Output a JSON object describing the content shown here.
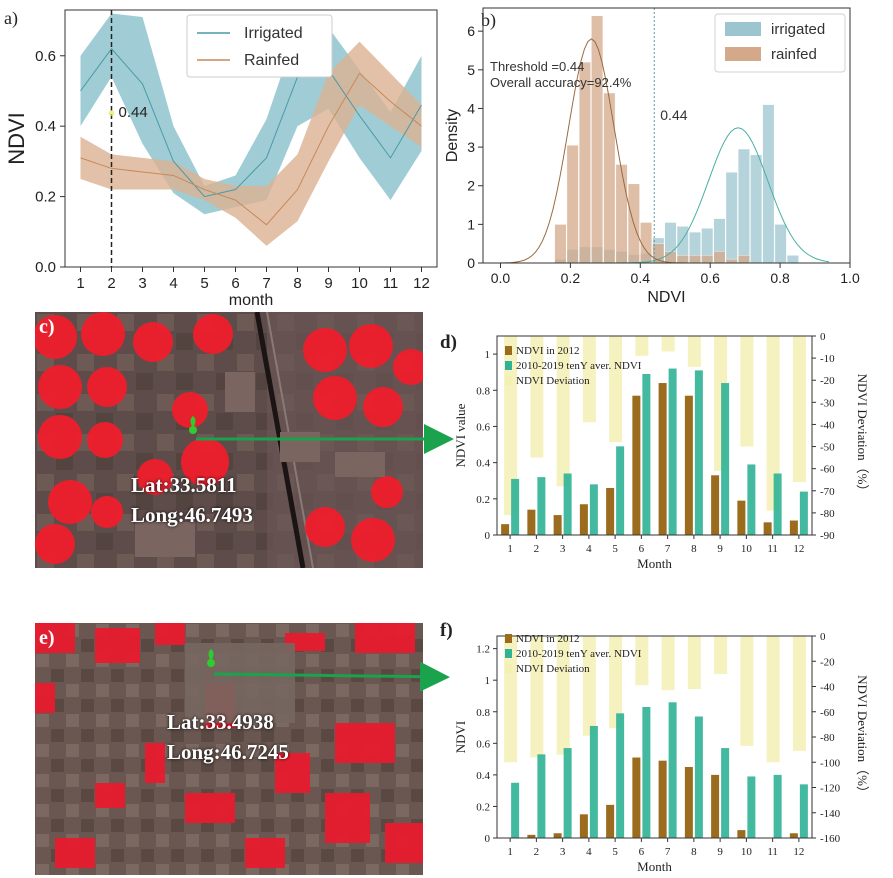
{
  "chart_data": [
    {
      "panel": "a)",
      "type": "area",
      "xlabel": "month",
      "ylabel": "NDVI",
      "x": [
        1,
        2,
        3,
        4,
        5,
        6,
        7,
        8,
        9,
        10,
        11,
        12
      ],
      "xlim": [
        0.5,
        12.5
      ],
      "ylim": [
        0,
        0.73
      ],
      "yticks": [
        0.0,
        0.2,
        0.4,
        0.6
      ],
      "ytick_labels": [
        "0.0",
        "0.2",
        "0.4",
        "0.6"
      ],
      "legend_position": "top-center",
      "threshold_label": "0.44",
      "threshold_x": 2,
      "series": [
        {
          "name": "Irrigated",
          "color": "#4a9aa5",
          "fill": "#8fc4ce",
          "mean": [
            0.5,
            0.62,
            0.52,
            0.3,
            0.2,
            0.22,
            0.31,
            0.54,
            0.56,
            0.43,
            0.31,
            0.46
          ],
          "upper": [
            0.6,
            0.72,
            0.71,
            0.4,
            0.23,
            0.26,
            0.42,
            0.68,
            0.68,
            0.56,
            0.44,
            0.6
          ],
          "lower": [
            0.4,
            0.54,
            0.35,
            0.21,
            0.15,
            0.17,
            0.19,
            0.4,
            0.45,
            0.31,
            0.19,
            0.33
          ]
        },
        {
          "name": "Rainfed",
          "color": "#c8895a",
          "fill": "#dbb292",
          "mean": [
            0.31,
            0.28,
            0.27,
            0.26,
            0.22,
            0.19,
            0.12,
            0.22,
            0.4,
            0.55,
            0.47,
            0.4
          ],
          "upper": [
            0.37,
            0.32,
            0.31,
            0.3,
            0.25,
            0.23,
            0.23,
            0.32,
            0.55,
            0.64,
            0.55,
            0.46
          ],
          "lower": [
            0.25,
            0.22,
            0.22,
            0.22,
            0.19,
            0.14,
            0.06,
            0.13,
            0.3,
            0.46,
            0.4,
            0.34
          ]
        }
      ]
    },
    {
      "panel": "b)",
      "type": "bar",
      "xlabel": "NDVI",
      "ylabel": "Density",
      "xlim": [
        -0.05,
        1.0
      ],
      "ylim": [
        0,
        6.6
      ],
      "xticks": [
        0.0,
        0.2,
        0.4,
        0.6,
        0.8,
        1.0
      ],
      "xtick_labels": [
        "0.0",
        "0.2",
        "0.4",
        "0.6",
        "0.8",
        "1.0"
      ],
      "yticks": [
        0,
        1,
        2,
        3,
        4,
        5,
        6
      ],
      "legend_position": "top-right",
      "threshold_x": 0.44,
      "threshold_label": "0.44",
      "annotation": [
        "Threshold =0.44",
        "Overall accuracy=92.4%"
      ],
      "bin_width": 0.0345,
      "series": [
        {
          "name": "irrigated",
          "color": "#9cc5cf",
          "line": "#4ab0a5",
          "bins": [
            [
              0.155,
              0.1
            ],
            [
              0.19,
              0.35
            ],
            [
              0.225,
              0.42
            ],
            [
              0.26,
              0.42
            ],
            [
              0.295,
              0.35
            ],
            [
              0.33,
              0.3
            ],
            [
              0.365,
              0.22
            ],
            [
              0.4,
              0.25
            ],
            [
              0.435,
              0.65
            ],
            [
              0.47,
              1.05
            ],
            [
              0.505,
              0.95
            ],
            [
              0.54,
              0.8
            ],
            [
              0.575,
              0.9
            ],
            [
              0.61,
              1.15
            ],
            [
              0.645,
              2.35
            ],
            [
              0.68,
              2.95
            ],
            [
              0.715,
              2.8
            ],
            [
              0.75,
              4.1
            ],
            [
              0.785,
              1.0
            ],
            [
              0.82,
              0.2
            ]
          ],
          "kde_peak": [
            0.68,
            3.5
          ]
        },
        {
          "name": "rainfed",
          "color": "#d4a98a",
          "line": "#9a6a40",
          "bins": [
            [
              0.155,
              1.0
            ],
            [
              0.19,
              3.05
            ],
            [
              0.225,
              5.2
            ],
            [
              0.26,
              6.4
            ],
            [
              0.295,
              4.4
            ],
            [
              0.33,
              2.55
            ],
            [
              0.365,
              2.05
            ],
            [
              0.4,
              1.05
            ],
            [
              0.435,
              0.5
            ],
            [
              0.47,
              0.3
            ],
            [
              0.505,
              0.2
            ],
            [
              0.54,
              0.2
            ],
            [
              0.575,
              0.2
            ],
            [
              0.61,
              0.3
            ],
            [
              0.645,
              0.1
            ],
            [
              0.68,
              0.2
            ]
          ],
          "kde_peak": [
            0.26,
            5.8
          ]
        }
      ]
    },
    {
      "panel": "d)",
      "type": "bar",
      "xlabel": "Month",
      "ylabel": "NDVI value",
      "y2label": "NDVI Deviation（%）",
      "categories": [
        "1",
        "2",
        "3",
        "4",
        "5",
        "6",
        "7",
        "8",
        "9",
        "10",
        "11",
        "12"
      ],
      "ylim": [
        0,
        1.1
      ],
      "yticks": [
        0,
        0.2,
        0.4,
        0.6,
        0.8,
        1
      ],
      "ytick_labels": [
        "0",
        "0.2",
        "0.4",
        "0.6",
        "0.8",
        "1"
      ],
      "y2lim": [
        -90,
        0
      ],
      "y2ticks": [
        0,
        -10,
        -20,
        -30,
        -40,
        -50,
        -60,
        -70,
        -80,
        -90
      ],
      "legend_position": "top-left",
      "series": [
        {
          "name": "NDVI in 2012",
          "color": "#9b6b1e",
          "values": [
            0.06,
            0.14,
            0.11,
            0.17,
            0.26,
            0.77,
            0.84,
            0.77,
            0.33,
            0.19,
            0.07,
            0.08
          ]
        },
        {
          "name": "2010-2019 tenY aver. NDVI",
          "color": "#2fb396",
          "values": [
            0.31,
            0.32,
            0.34,
            0.28,
            0.49,
            0.89,
            0.92,
            0.91,
            0.84,
            0.39,
            0.34,
            0.24
          ]
        },
        {
          "name": "NDVI Deviation",
          "color": "#f3f0b4",
          "values": [
            -81,
            -55,
            -68,
            -39,
            -48,
            -9,
            -7,
            -14,
            -61,
            -50,
            -79,
            -66
          ]
        }
      ]
    },
    {
      "panel": "f)",
      "type": "bar",
      "xlabel": "Month",
      "ylabel": "NDVI",
      "y2label": "NDVI Deviation（%）",
      "categories": [
        "1",
        "2",
        "3",
        "4",
        "5",
        "6",
        "7",
        "8",
        "9",
        "10",
        "11",
        "12"
      ],
      "ylim": [
        0,
        1.28
      ],
      "yticks": [
        0,
        0.2,
        0.4,
        0.6,
        0.8,
        1,
        1.2
      ],
      "ytick_labels": [
        "0",
        "0.2",
        "0.4",
        "0.6",
        "0.8",
        "1",
        "1.2"
      ],
      "y2lim": [
        -160,
        0
      ],
      "y2ticks": [
        0,
        -20,
        -40,
        -60,
        -80,
        -100,
        -120,
        -140,
        -160
      ],
      "legend_position": "top-left",
      "series": [
        {
          "name": "NDVI in 2012",
          "color": "#9b6b1e",
          "values": [
            0.0,
            0.02,
            0.03,
            0.15,
            0.21,
            0.51,
            0.49,
            0.45,
            0.4,
            0.05,
            0.0,
            0.03
          ]
        },
        {
          "name": "2010-2019 tenY aver. NDVI",
          "color": "#2fb396",
          "values": [
            0.35,
            0.53,
            0.57,
            0.71,
            0.79,
            0.83,
            0.86,
            0.77,
            0.57,
            0.39,
            0.4,
            0.34
          ]
        },
        {
          "name": "NDVI Deviation",
          "color": "#f3f0b4",
          "values": [
            -100,
            -96,
            -94,
            -79,
            -73,
            -39,
            -43,
            -42,
            -30,
            -87,
            -100,
            -91
          ]
        }
      ]
    }
  ],
  "satellite": {
    "c": {
      "label": "c)",
      "lat": "Lat:33.5811",
      "long": "Long:46.7493"
    },
    "e": {
      "label": "e)",
      "lat": "Lat:33.4938",
      "long": "Long:46.7245"
    }
  }
}
